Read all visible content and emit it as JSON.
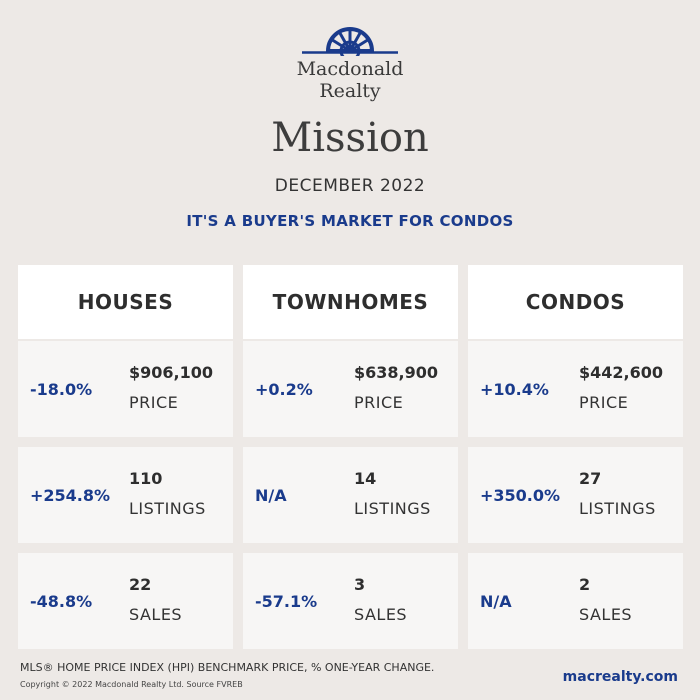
{
  "brand": {
    "name_line1": "Macdonald",
    "name_line2": "Realty",
    "logo_icon": "sunburst-arch-logo-icon",
    "brand_color": "#1a3b8c"
  },
  "header": {
    "city": "Mission",
    "date": "DECEMBER 2022",
    "headline": "IT'S A BUYER'S MARKET FOR CONDOS"
  },
  "columns": [
    {
      "title": "HOUSES",
      "price": {
        "change": "-18.0%",
        "value": "$906,100",
        "label": "PRICE"
      },
      "listings": {
        "change": "+254.8%",
        "value": "110",
        "label": "LISTINGS"
      },
      "sales": {
        "change": "-48.8%",
        "value": "22",
        "label": "SALES"
      }
    },
    {
      "title": "TOWNHOMES",
      "price": {
        "change": "+0.2%",
        "value": "$638,900",
        "label": "PRICE"
      },
      "listings": {
        "change": "N/A",
        "value": "14",
        "label": "LISTINGS"
      },
      "sales": {
        "change": "-57.1%",
        "value": "3",
        "label": "SALES"
      }
    },
    {
      "title": "CONDOS",
      "price": {
        "change": "+10.4%",
        "value": "$442,600",
        "label": "PRICE"
      },
      "listings": {
        "change": "+350.0%",
        "value": "27",
        "label": "LISTINGS"
      },
      "sales": {
        "change": "N/A",
        "value": "2",
        "label": "SALES"
      }
    }
  ],
  "footer": {
    "note": "MLS® HOME PRICE INDEX (HPI) BENCHMARK PRICE, % ONE-YEAR CHANGE.",
    "copyright": "Copyright © 2022 Macdonald Realty Ltd. Source FVREB",
    "website": "macrealty.com"
  }
}
